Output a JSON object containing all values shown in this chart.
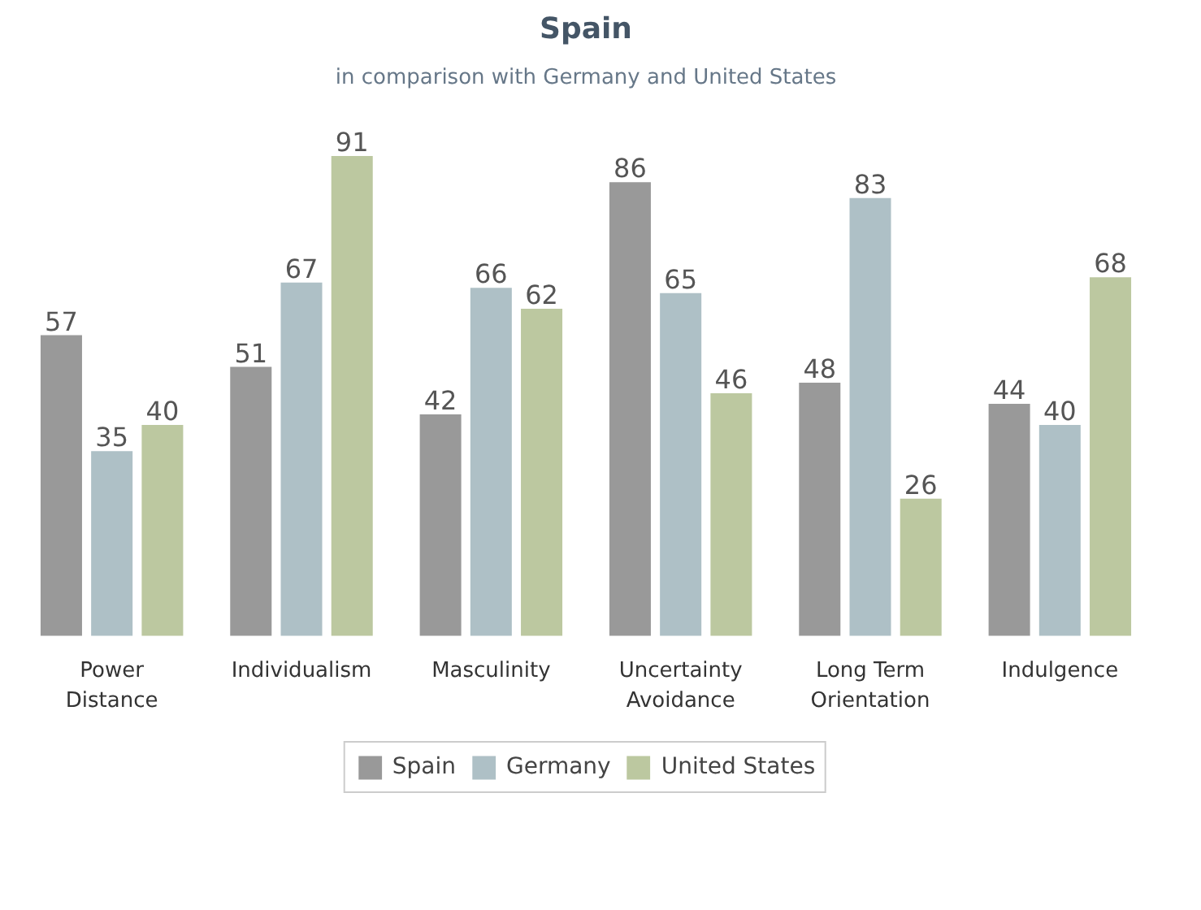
{
  "chart_data": {
    "type": "bar",
    "title": "Spain",
    "subtitle": "in comparison with Germany and United States",
    "categories": [
      "Power Distance",
      "Individualism",
      "Masculinity",
      "Uncertainty Avoidance",
      "Long Term Orientation",
      "Indulgence"
    ],
    "series": [
      {
        "name": "Spain",
        "color": "#999999",
        "values": [
          57,
          51,
          42,
          86,
          48,
          44
        ]
      },
      {
        "name": "Germany",
        "color": "#aec0c6",
        "values": [
          35,
          67,
          66,
          65,
          83,
          40
        ]
      },
      {
        "name": "United States",
        "color": "#bcc8a0",
        "values": [
          40,
          91,
          62,
          46,
          26,
          68
        ]
      }
    ],
    "data_labels": true,
    "legend": "bottom",
    "grid": false
  }
}
